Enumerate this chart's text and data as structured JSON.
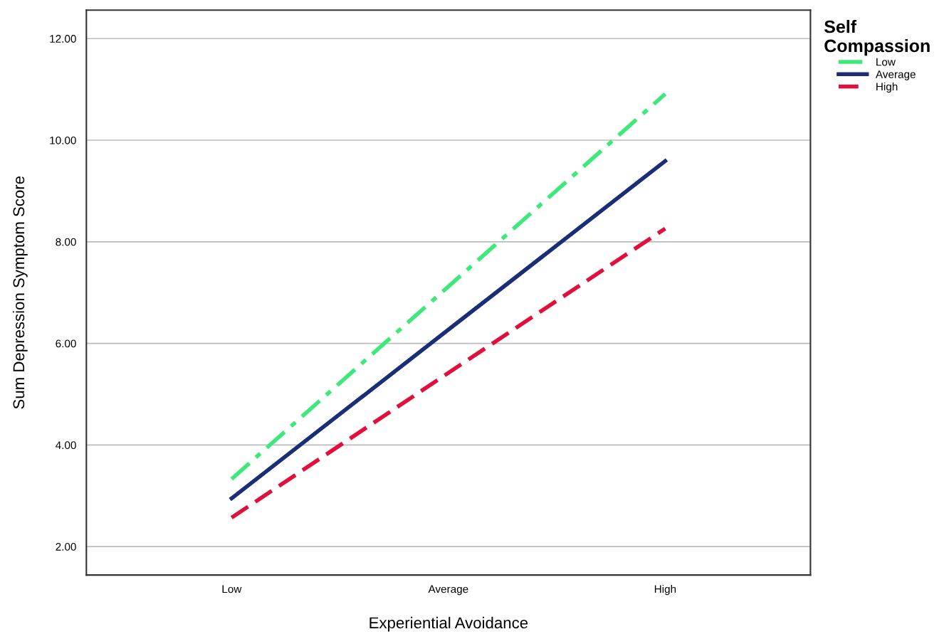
{
  "chart_data": {
    "type": "line",
    "xlabel": "Experiential Avoidance",
    "ylabel": "Sum Depression Symptom Score",
    "legend_title": "Self\nCompassion",
    "categories": [
      "Low",
      "Average",
      "High"
    ],
    "series": [
      {
        "name": "Low",
        "color": "#3ee87a",
        "line_style": "dashdot",
        "values": [
          3.33,
          7.12,
          10.91
        ]
      },
      {
        "name": "Average",
        "color": "#1a2e78",
        "line_style": "solid",
        "values": [
          2.95,
          6.27,
          9.59
        ]
      },
      {
        "name": "High",
        "color": "#e0103a",
        "line_style": "dashed",
        "values": [
          2.57,
          5.42,
          8.26
        ]
      }
    ],
    "ylim": [
      1.44,
      12.56
    ],
    "yticks": [
      {
        "value": 2,
        "label": "2.00"
      },
      {
        "value": 4,
        "label": "4.00"
      },
      {
        "value": 6,
        "label": "6.00"
      },
      {
        "value": 8,
        "label": "8.00"
      },
      {
        "value": 10,
        "label": "10.00"
      },
      {
        "value": 12,
        "label": "12.00"
      }
    ],
    "grid": "y",
    "legend": "top right",
    "marker": "none"
  }
}
